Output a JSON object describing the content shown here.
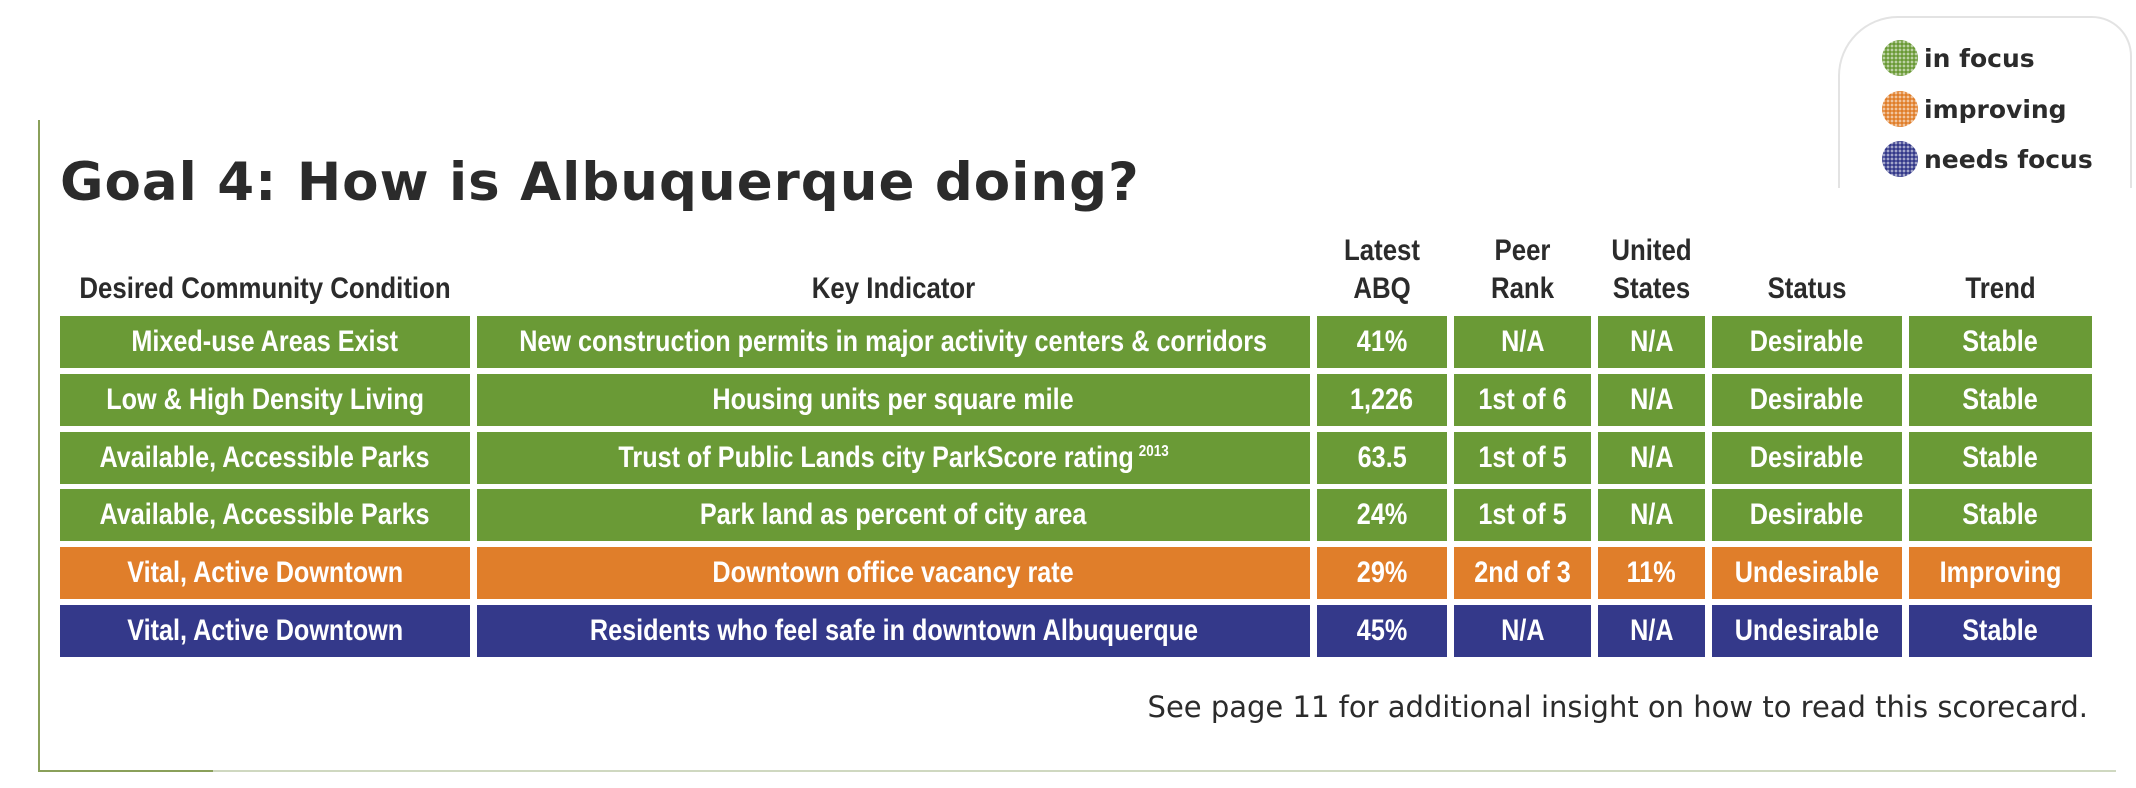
{
  "title": "Goal 4: How is Albuquerque doing?",
  "legend": [
    {
      "label": "in focus",
      "color": "#6a9a36"
    },
    {
      "label": "improving",
      "color": "#e07e2a"
    },
    {
      "label": "needs focus",
      "color": "#34398a"
    }
  ],
  "columns": {
    "condition": "Desired Community Condition",
    "indicator": "Key Indicator",
    "latest_abq_line1": "Latest",
    "latest_abq_line2": "ABQ",
    "peer_rank_line1": "Peer",
    "peer_rank_line2": "Rank",
    "united_states_line1": "United",
    "united_states_line2": "States",
    "status": "Status",
    "trend": "Trend"
  },
  "rows": [
    {
      "condition": "Mixed-use Areas Exist",
      "indicator": "New construction permits in major activity centers & corridors",
      "indicator_sup": "",
      "latest": "41%",
      "peer": "N/A",
      "us": "N/A",
      "status": "Desirable",
      "trend": "Stable",
      "color": "#6a9a36"
    },
    {
      "condition": "Low & High Density Living",
      "indicator": "Housing units per square mile",
      "indicator_sup": "",
      "latest": "1,226",
      "peer": "1st of 6",
      "us": "N/A",
      "status": "Desirable",
      "trend": "Stable",
      "color": "#6a9a36"
    },
    {
      "condition": "Available, Accessible Parks",
      "indicator": "Trust of Public Lands city ParkScore rating",
      "indicator_sup": "2013",
      "latest": "63.5",
      "peer": "1st of 5",
      "us": "N/A",
      "status": "Desirable",
      "trend": "Stable",
      "color": "#6a9a36"
    },
    {
      "condition": "Available, Accessible Parks",
      "indicator": "Park land as percent of city area",
      "indicator_sup": "",
      "latest": "24%",
      "peer": "1st of 5",
      "us": "N/A",
      "status": "Desirable",
      "trend": "Stable",
      "color": "#6a9a36"
    },
    {
      "condition": "Vital, Active Downtown",
      "indicator": "Downtown office vacancy rate",
      "indicator_sup": "",
      "latest": "29%",
      "peer": "2nd of 3",
      "us": "11%",
      "status": "Undesirable",
      "trend": "Improving",
      "color": "#e07e2a"
    },
    {
      "condition": "Vital, Active Downtown",
      "indicator": "Residents who feel safe in downtown Albuquerque",
      "indicator_sup": "",
      "latest": "45%",
      "peer": "N/A",
      "us": "N/A",
      "status": "Undesirable",
      "trend": "Stable",
      "color": "#34398a"
    }
  ],
  "footnote": "See page 11 for additional insight on how to read this scorecard."
}
